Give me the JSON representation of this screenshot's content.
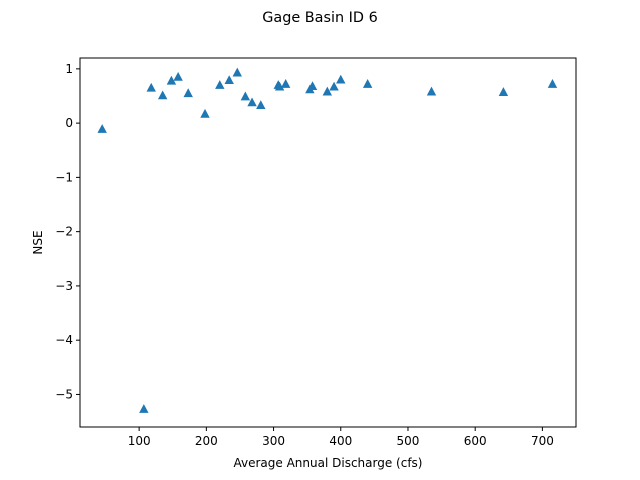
{
  "chart_data": {
    "type": "scatter",
    "title": "Gage Basin ID 6",
    "xlabel": "Average Annual Discharge (cfs)",
    "ylabel": "NSE",
    "xlim": [
      12,
      750
    ],
    "ylim": [
      -5.6,
      1.2
    ],
    "xticks": [
      100,
      200,
      300,
      400,
      500,
      600,
      700
    ],
    "yticks": [
      -5,
      -4,
      -3,
      -2,
      -1,
      0,
      1
    ],
    "grid": false,
    "marker": "triangle-up",
    "color": "#1f77b4",
    "series": [
      {
        "x": [
          45,
          107,
          118,
          135,
          148,
          158,
          173,
          198,
          220,
          234,
          246,
          258,
          268,
          281,
          307,
          309,
          318,
          354,
          358,
          380,
          390,
          400,
          440,
          535,
          642,
          715
        ],
        "y": [
          -0.11,
          -5.27,
          0.65,
          0.51,
          0.78,
          0.85,
          0.55,
          0.17,
          0.7,
          0.79,
          0.93,
          0.49,
          0.38,
          0.33,
          0.7,
          0.67,
          0.72,
          0.62,
          0.68,
          0.58,
          0.67,
          0.8,
          0.72,
          0.58,
          0.57,
          0.72
        ]
      }
    ]
  }
}
